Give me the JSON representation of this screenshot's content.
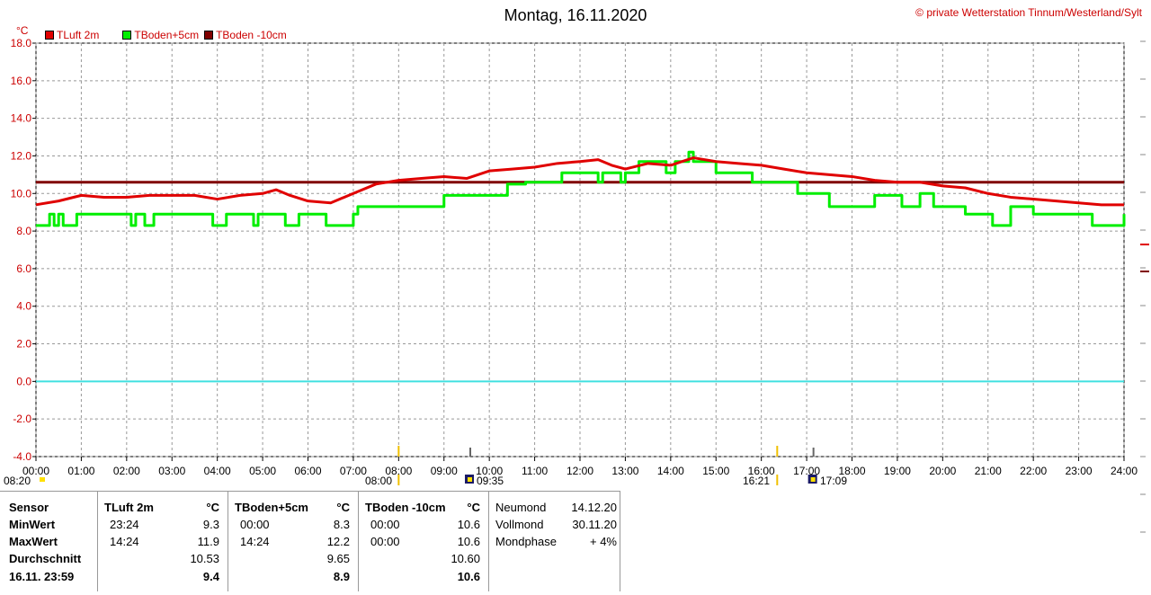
{
  "title": "Montag, 16.11.2020",
  "copyright": "© private Wetterstation Tinnum/Westerland/Sylt",
  "unit": "°C",
  "chart_data": {
    "type": "line",
    "ylim": [
      -4,
      18
    ],
    "yticks": [
      "-4.0",
      "-2.0",
      "0.0",
      "2.0",
      "4.0",
      "6.0",
      "8.0",
      "10.0",
      "12.0",
      "14.0",
      "16.0",
      "18.0"
    ],
    "xlim": [
      0,
      24
    ],
    "xticks": [
      "00:00",
      "01:00",
      "02:00",
      "03:00",
      "04:00",
      "05:00",
      "06:00",
      "07:00",
      "08:00",
      "09:00",
      "10:00",
      "11:00",
      "12:00",
      "13:00",
      "14:00",
      "15:00",
      "16:00",
      "17:00",
      "18:00",
      "19:00",
      "20:00",
      "21:00",
      "22:00",
      "23:00",
      "24:00"
    ],
    "grid": true,
    "legend_position": "top-left",
    "series": [
      {
        "name": "TLuft 2m",
        "color": "#e00000",
        "x": [
          0,
          0.5,
          1,
          1.5,
          2,
          2.5,
          3,
          3.5,
          4,
          4.5,
          5,
          5.3,
          5.6,
          6,
          6.5,
          7,
          7.5,
          8,
          8.5,
          9,
          9.5,
          10,
          10.5,
          11,
          11.5,
          12,
          12.4,
          12.7,
          13,
          13.5,
          14,
          14.5,
          15,
          15.5,
          16,
          16.5,
          17,
          17.5,
          18,
          18.5,
          19,
          19.5,
          20,
          20.5,
          21,
          21.5,
          22,
          22.5,
          23,
          23.5,
          24
        ],
        "y": [
          9.4,
          9.6,
          9.9,
          9.8,
          9.8,
          9.9,
          9.9,
          9.9,
          9.7,
          9.9,
          10.0,
          10.2,
          9.9,
          9.6,
          9.5,
          10.0,
          10.5,
          10.7,
          10.8,
          10.9,
          10.8,
          11.2,
          11.3,
          11.4,
          11.6,
          11.7,
          11.8,
          11.5,
          11.3,
          11.6,
          11.5,
          11.9,
          11.7,
          11.6,
          11.5,
          11.3,
          11.1,
          11.0,
          10.9,
          10.7,
          10.6,
          10.6,
          10.4,
          10.3,
          10.0,
          9.8,
          9.7,
          9.6,
          9.5,
          9.4,
          9.4
        ]
      },
      {
        "name": "TBoden+5cm",
        "color": "#00ee00",
        "x": [
          0,
          0.3,
          0.4,
          0.5,
          0.6,
          0.9,
          2.1,
          2.2,
          2.4,
          2.6,
          3.9,
          4.2,
          4.8,
          4.9,
          5.5,
          5.8,
          6.4,
          7,
          7.1,
          9.0,
          10.4,
          10.8,
          11.6,
          12.4,
          12.5,
          12.9,
          13,
          13.3,
          13.9,
          14.1,
          14.4,
          14.5,
          15.0,
          15.8,
          16.8,
          17.5,
          18.5,
          19.1,
          19.5,
          19.8,
          20.5,
          21.0,
          21.1,
          21.5,
          22.0,
          22.5,
          23.3,
          23.9,
          24
        ],
        "y": [
          8.3,
          8.9,
          8.3,
          8.9,
          8.3,
          8.9,
          8.3,
          8.9,
          8.3,
          8.9,
          8.3,
          8.9,
          8.3,
          8.9,
          8.3,
          8.9,
          8.3,
          8.9,
          9.3,
          9.9,
          10.5,
          10.6,
          11.1,
          10.6,
          11.1,
          10.6,
          11.1,
          11.7,
          11.1,
          11.7,
          12.2,
          11.7,
          11.1,
          10.6,
          10.0,
          9.3,
          9.9,
          9.3,
          10.0,
          9.3,
          8.9,
          8.9,
          8.3,
          9.3,
          8.9,
          8.9,
          8.3,
          8.3,
          8.9
        ]
      },
      {
        "name": "TBoden -10cm",
        "color": "#800000",
        "x": [
          0,
          24
        ],
        "y": [
          10.6,
          10.6
        ]
      }
    ],
    "zero_line_color": "#40e0e0",
    "sun_moon": [
      {
        "label": "08:20",
        "type": "sunrise",
        "x": 8.33
      },
      {
        "label": "08:00",
        "type": "sunrise-mark",
        "x": 8.0
      },
      {
        "label": "09:35",
        "type": "moonrise",
        "x": 9.58
      },
      {
        "label": "16:21",
        "type": "sunset",
        "x": 16.35
      },
      {
        "label": "17:09",
        "type": "moonset",
        "x": 17.15
      }
    ]
  },
  "stats": {
    "sensor": {
      "header": "Sensor",
      "rows": [
        "MinWert",
        "MaxWert",
        "Durchschnitt",
        "16.11. 23:59"
      ]
    },
    "tluft": {
      "header": "TLuft 2m",
      "unit": "°C",
      "min_time": "23:24",
      "min": "9.3",
      "max_time": "14:24",
      "max": "11.9",
      "avg": "10.53",
      "last": "9.4"
    },
    "tboden5": {
      "header": "TBoden+5cm",
      "unit": "°C",
      "min_time": "00:00",
      "min": "8.3",
      "max_time": "14:24",
      "max": "12.2",
      "avg": "9.65",
      "last": "8.9"
    },
    "tboden10": {
      "header": "TBoden -10cm",
      "unit": "°C",
      "min_time": "00:00",
      "min": "10.6",
      "max_time": "00:00",
      "max": "10.6",
      "avg": "10.60",
      "last": "10.6"
    },
    "moon": {
      "neumond_label": "Neumond",
      "neumond": "14.12.20",
      "vollmond_label": "Vollmond",
      "vollmond": "30.11.20",
      "phase_label": "Mondphase",
      "phase": "+ 4%"
    }
  }
}
